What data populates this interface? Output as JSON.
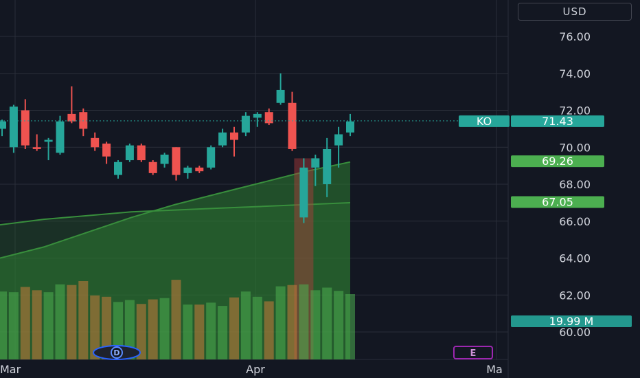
{
  "currency_button": {
    "label": "USD"
  },
  "colors": {
    "background": "#131722",
    "up": "#26a69a",
    "down": "#ef5350",
    "grid": "#2a2e39",
    "text": "#d1d4dc",
    "area": "#2e7d32"
  },
  "chart_data": {
    "type": "candlestick",
    "ylim": [
      59,
      78
    ],
    "y_ticks": [
      "76.00",
      "74.00",
      "72.00",
      "70.00",
      "68.00",
      "66.00",
      "64.00",
      "62.00",
      "60.00"
    ],
    "x_labels": [
      "Mar",
      "Apr",
      "Ma"
    ],
    "candles": [
      {
        "o": 71.0,
        "h": 71.5,
        "l": 70.6,
        "c": 71.4
      },
      {
        "o": 70.0,
        "h": 72.3,
        "l": 69.7,
        "c": 72.2
      },
      {
        "o": 72.0,
        "h": 72.6,
        "l": 69.9,
        "c": 70.1
      },
      {
        "o": 70.0,
        "h": 70.7,
        "l": 69.8,
        "c": 69.9
      },
      {
        "o": 70.3,
        "h": 70.5,
        "l": 69.3,
        "c": 70.4
      },
      {
        "o": 69.7,
        "h": 71.7,
        "l": 69.6,
        "c": 71.4
      },
      {
        "o": 71.8,
        "h": 73.3,
        "l": 71.3,
        "c": 71.4
      },
      {
        "o": 71.9,
        "h": 72.1,
        "l": 70.6,
        "c": 71.0
      },
      {
        "o": 70.5,
        "h": 70.8,
        "l": 69.8,
        "c": 70.0
      },
      {
        "o": 70.2,
        "h": 70.3,
        "l": 69.1,
        "c": 69.5
      },
      {
        "o": 68.5,
        "h": 69.3,
        "l": 68.3,
        "c": 69.2
      },
      {
        "o": 69.3,
        "h": 70.2,
        "l": 69.2,
        "c": 70.1
      },
      {
        "o": 70.1,
        "h": 70.2,
        "l": 69.2,
        "c": 69.3
      },
      {
        "o": 69.2,
        "h": 69.3,
        "l": 68.5,
        "c": 68.6
      },
      {
        "o": 69.1,
        "h": 69.7,
        "l": 68.9,
        "c": 69.6
      },
      {
        "o": 70.0,
        "h": 70.0,
        "l": 68.2,
        "c": 68.5
      },
      {
        "o": 68.6,
        "h": 69.0,
        "l": 68.3,
        "c": 68.9
      },
      {
        "o": 68.9,
        "h": 69.0,
        "l": 68.6,
        "c": 68.7
      },
      {
        "o": 68.9,
        "h": 70.1,
        "l": 68.8,
        "c": 70.0
      },
      {
        "o": 70.1,
        "h": 71.0,
        "l": 70.0,
        "c": 70.8
      },
      {
        "o": 70.8,
        "h": 71.1,
        "l": 69.5,
        "c": 70.4
      },
      {
        "o": 70.8,
        "h": 71.9,
        "l": 70.6,
        "c": 71.7
      },
      {
        "o": 71.6,
        "h": 71.9,
        "l": 71.1,
        "c": 71.8
      },
      {
        "o": 71.9,
        "h": 72.1,
        "l": 71.2,
        "c": 71.3
      },
      {
        "o": 72.4,
        "h": 74.0,
        "l": 72.3,
        "c": 73.1
      },
      {
        "o": 72.4,
        "h": 73.0,
        "l": 69.8,
        "c": 69.9
      },
      {
        "o": 66.2,
        "h": 69.4,
        "l": 65.9,
        "c": 68.9
      },
      {
        "o": 68.9,
        "h": 69.6,
        "l": 67.9,
        "c": 69.4
      },
      {
        "o": 68.0,
        "h": 70.5,
        "l": 67.3,
        "c": 69.9
      },
      {
        "o": 70.1,
        "h": 71.1,
        "l": 68.9,
        "c": 70.7
      },
      {
        "o": 70.8,
        "h": 71.8,
        "l": 70.6,
        "c": 71.4
      }
    ],
    "volumes": [
      10.4,
      10.3,
      11.1,
      10.6,
      10.3,
      11.5,
      11.4,
      12.0,
      9.8,
      9.6,
      8.8,
      9.1,
      8.5,
      9.2,
      9.4,
      12.2,
      8.4,
      8.4,
      8.7,
      8.2,
      9.5,
      10.4,
      9.6,
      8.9,
      11.2,
      11.4,
      11.5,
      10.6,
      11.0,
      10.5,
      10.0
    ],
    "ma_fast": [
      64.0,
      64.6,
      65.4,
      66.2,
      66.9,
      67.5,
      68.1,
      68.7,
      69.2
    ],
    "ma_slow": [
      65.8,
      66.1,
      66.3,
      66.5,
      66.6,
      66.7,
      66.8,
      66.9,
      67.0
    ],
    "ticker_label": {
      "symbol": "KO",
      "price": "71.43",
      "value": 71.43
    },
    "ma_labels": [
      {
        "text": "69.26",
        "value": 69.26
      },
      {
        "text": "67.05",
        "value": 67.05
      }
    ],
    "volume_label": {
      "text": "19.99 M"
    },
    "event_markers": [
      {
        "letter": "D",
        "candle": 10
      },
      {
        "letter": "E",
        "candle": 40
      }
    ]
  }
}
